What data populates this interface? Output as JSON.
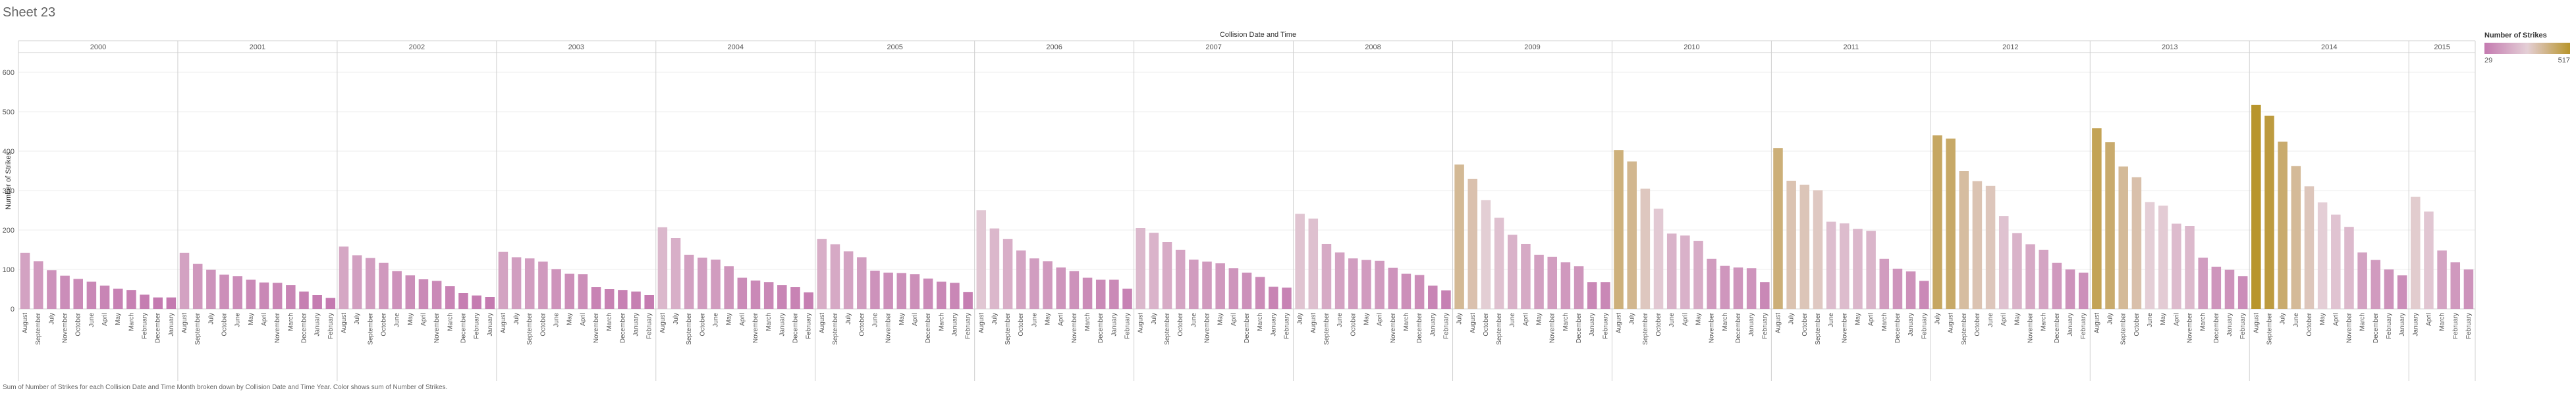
{
  "sheet_title": "Sheet 23",
  "footer_note": "Sum of Number of Strikes for each Collision Date and Time Month broken down by Collision Date and Time Year.  Color shows sum of Number of Strikes.",
  "colors": {
    "low": "#c47ab0",
    "mid": "#e4cfd6",
    "high": "#b8952c",
    "grid": "#ececec",
    "divider": "#d0d0d0",
    "text": "#555555"
  },
  "chart_data": {
    "type": "bar",
    "title": "Collision Date and Time",
    "ylabel": "Number of Strikes",
    "ylim": [
      0,
      650
    ],
    "yticks": [
      0,
      100,
      200,
      300,
      400,
      500,
      600
    ],
    "grid": true,
    "legend": {
      "title": "Number of Strikes",
      "min_label": "29",
      "max_label": "517",
      "placement": "top-right"
    },
    "years": [
      {
        "year": "2000",
        "bars": [
          {
            "month": "August",
            "value": 142
          },
          {
            "month": "September",
            "value": 121
          },
          {
            "month": "July",
            "value": 98
          },
          {
            "month": "November",
            "value": 84
          },
          {
            "month": "October",
            "value": 76
          },
          {
            "month": "June",
            "value": 69
          },
          {
            "month": "April",
            "value": 59
          },
          {
            "month": "May",
            "value": 51
          },
          {
            "month": "March",
            "value": 48
          },
          {
            "month": "February",
            "value": 36
          },
          {
            "month": "December",
            "value": 29
          },
          {
            "month": "January",
            "value": 29
          }
        ]
      },
      {
        "year": "2001",
        "bars": [
          {
            "month": "August",
            "value": 142
          },
          {
            "month": "September",
            "value": 114
          },
          {
            "month": "July",
            "value": 99
          },
          {
            "month": "October",
            "value": 87
          },
          {
            "month": "June",
            "value": 83
          },
          {
            "month": "May",
            "value": 74
          },
          {
            "month": "April",
            "value": 67
          },
          {
            "month": "November",
            "value": 66
          },
          {
            "month": "March",
            "value": 60
          },
          {
            "month": "December",
            "value": 44
          },
          {
            "month": "January",
            "value": 35
          },
          {
            "month": "February",
            "value": 28
          }
        ]
      },
      {
        "year": "2002",
        "bars": [
          {
            "month": "August",
            "value": 158
          },
          {
            "month": "July",
            "value": 136
          },
          {
            "month": "September",
            "value": 129
          },
          {
            "month": "October",
            "value": 117
          },
          {
            "month": "June",
            "value": 96
          },
          {
            "month": "May",
            "value": 85
          },
          {
            "month": "April",
            "value": 75
          },
          {
            "month": "November",
            "value": 71
          },
          {
            "month": "March",
            "value": 58
          },
          {
            "month": "December",
            "value": 40
          },
          {
            "month": "February",
            "value": 34
          },
          {
            "month": "January",
            "value": 30
          }
        ]
      },
      {
        "year": "2003",
        "bars": [
          {
            "month": "August",
            "value": 145
          },
          {
            "month": "July",
            "value": 131
          },
          {
            "month": "September",
            "value": 128
          },
          {
            "month": "October",
            "value": 120
          },
          {
            "month": "June",
            "value": 101
          },
          {
            "month": "May",
            "value": 89
          },
          {
            "month": "April",
            "value": 88
          },
          {
            "month": "November",
            "value": 55
          },
          {
            "month": "March",
            "value": 50
          },
          {
            "month": "December",
            "value": 48
          },
          {
            "month": "January",
            "value": 44
          },
          {
            "month": "February",
            "value": 35
          }
        ]
      },
      {
        "year": "2004",
        "bars": [
          {
            "month": "August",
            "value": 207
          },
          {
            "month": "July",
            "value": 180
          },
          {
            "month": "September",
            "value": 137
          },
          {
            "month": "October",
            "value": 130
          },
          {
            "month": "June",
            "value": 125
          },
          {
            "month": "May",
            "value": 108
          },
          {
            "month": "April",
            "value": 79
          },
          {
            "month": "November",
            "value": 72
          },
          {
            "month": "March",
            "value": 68
          },
          {
            "month": "January",
            "value": 60
          },
          {
            "month": "December",
            "value": 55
          },
          {
            "month": "February",
            "value": 42
          }
        ]
      },
      {
        "year": "2005",
        "bars": [
          {
            "month": "August",
            "value": 177
          },
          {
            "month": "September",
            "value": 164
          },
          {
            "month": "July",
            "value": 146
          },
          {
            "month": "October",
            "value": 131
          },
          {
            "month": "June",
            "value": 97
          },
          {
            "month": "November",
            "value": 92
          },
          {
            "month": "May",
            "value": 91
          },
          {
            "month": "April",
            "value": 88
          },
          {
            "month": "December",
            "value": 77
          },
          {
            "month": "March",
            "value": 69
          },
          {
            "month": "January",
            "value": 66
          },
          {
            "month": "February",
            "value": 43
          }
        ]
      },
      {
        "year": "2006",
        "bars": [
          {
            "month": "August",
            "value": 250
          },
          {
            "month": "July",
            "value": 204
          },
          {
            "month": "September",
            "value": 177
          },
          {
            "month": "October",
            "value": 148
          },
          {
            "month": "June",
            "value": 128
          },
          {
            "month": "May",
            "value": 121
          },
          {
            "month": "April",
            "value": 105
          },
          {
            "month": "November",
            "value": 96
          },
          {
            "month": "March",
            "value": 79
          },
          {
            "month": "December",
            "value": 74
          },
          {
            "month": "January",
            "value": 74
          },
          {
            "month": "February",
            "value": 51
          }
        ]
      },
      {
        "year": "2007",
        "bars": [
          {
            "month": "August",
            "value": 205
          },
          {
            "month": "July",
            "value": 193
          },
          {
            "month": "September",
            "value": 170
          },
          {
            "month": "October",
            "value": 150
          },
          {
            "month": "June",
            "value": 125
          },
          {
            "month": "November",
            "value": 120
          },
          {
            "month": "May",
            "value": 116
          },
          {
            "month": "April",
            "value": 103
          },
          {
            "month": "December",
            "value": 92
          },
          {
            "month": "March",
            "value": 81
          },
          {
            "month": "January",
            "value": 56
          },
          {
            "month": "February",
            "value": 54
          }
        ]
      },
      {
        "year": "2008",
        "bars": [
          {
            "month": "July",
            "value": 241
          },
          {
            "month": "August",
            "value": 229
          },
          {
            "month": "September",
            "value": 165
          },
          {
            "month": "June",
            "value": 143
          },
          {
            "month": "October",
            "value": 128
          },
          {
            "month": "May",
            "value": 124
          },
          {
            "month": "April",
            "value": 122
          },
          {
            "month": "November",
            "value": 104
          },
          {
            "month": "March",
            "value": 89
          },
          {
            "month": "December",
            "value": 86
          },
          {
            "month": "January",
            "value": 59
          },
          {
            "month": "February",
            "value": 47
          }
        ]
      },
      {
        "year": "2009",
        "bars": [
          {
            "month": "July",
            "value": 366
          },
          {
            "month": "August",
            "value": 330
          },
          {
            "month": "October",
            "value": 276
          },
          {
            "month": "September",
            "value": 231
          },
          {
            "month": "June",
            "value": 188
          },
          {
            "month": "April",
            "value": 165
          },
          {
            "month": "May",
            "value": 137
          },
          {
            "month": "November",
            "value": 132
          },
          {
            "month": "March",
            "value": 118
          },
          {
            "month": "December",
            "value": 108
          },
          {
            "month": "January",
            "value": 68
          },
          {
            "month": "February",
            "value": 68
          }
        ]
      },
      {
        "year": "2010",
        "bars": [
          {
            "month": "August",
            "value": 403
          },
          {
            "month": "July",
            "value": 374
          },
          {
            "month": "September",
            "value": 305
          },
          {
            "month": "October",
            "value": 254
          },
          {
            "month": "June",
            "value": 191
          },
          {
            "month": "April",
            "value": 186
          },
          {
            "month": "May",
            "value": 172
          },
          {
            "month": "November",
            "value": 127
          },
          {
            "month": "March",
            "value": 109
          },
          {
            "month": "December",
            "value": 105
          },
          {
            "month": "January",
            "value": 103
          },
          {
            "month": "February",
            "value": 68
          }
        ]
      },
      {
        "year": "2011",
        "bars": [
          {
            "month": "August",
            "value": 408
          },
          {
            "month": "July",
            "value": 325
          },
          {
            "month": "October",
            "value": 315
          },
          {
            "month": "September",
            "value": 301
          },
          {
            "month": "June",
            "value": 221
          },
          {
            "month": "November",
            "value": 217
          },
          {
            "month": "May",
            "value": 203
          },
          {
            "month": "April",
            "value": 198
          },
          {
            "month": "March",
            "value": 127
          },
          {
            "month": "December",
            "value": 102
          },
          {
            "month": "January",
            "value": 95
          },
          {
            "month": "February",
            "value": 71
          }
        ]
      },
      {
        "year": "2012",
        "bars": [
          {
            "month": "July",
            "value": 440
          },
          {
            "month": "August",
            "value": 432
          },
          {
            "month": "September",
            "value": 350
          },
          {
            "month": "October",
            "value": 324
          },
          {
            "month": "June",
            "value": 312
          },
          {
            "month": "April",
            "value": 235
          },
          {
            "month": "May",
            "value": 192
          },
          {
            "month": "November",
            "value": 164
          },
          {
            "month": "March",
            "value": 150
          },
          {
            "month": "December",
            "value": 117
          },
          {
            "month": "January",
            "value": 100
          },
          {
            "month": "February",
            "value": 92
          }
        ]
      },
      {
        "year": "2013",
        "bars": [
          {
            "month": "August",
            "value": 458
          },
          {
            "month": "July",
            "value": 423
          },
          {
            "month": "September",
            "value": 361
          },
          {
            "month": "October",
            "value": 334
          },
          {
            "month": "June",
            "value": 271
          },
          {
            "month": "May",
            "value": 262
          },
          {
            "month": "April",
            "value": 216
          },
          {
            "month": "November",
            "value": 210
          },
          {
            "month": "March",
            "value": 130
          },
          {
            "month": "December",
            "value": 107
          },
          {
            "month": "January",
            "value": 99
          },
          {
            "month": "February",
            "value": 83
          }
        ]
      },
      {
        "year": "2014",
        "bars": [
          {
            "month": "August",
            "value": 517
          },
          {
            "month": "September",
            "value": 490
          },
          {
            "month": "July",
            "value": 424
          },
          {
            "month": "June",
            "value": 362
          },
          {
            "month": "October",
            "value": 311
          },
          {
            "month": "May",
            "value": 270
          },
          {
            "month": "April",
            "value": 239
          },
          {
            "month": "November",
            "value": 208
          },
          {
            "month": "March",
            "value": 143
          },
          {
            "month": "December",
            "value": 124
          },
          {
            "month": "February",
            "value": 100
          },
          {
            "month": "January",
            "value": 85
          }
        ]
      },
      {
        "year": "2015",
        "bars": [
          {
            "month": "January",
            "value": 284
          },
          {
            "month": "April",
            "value": 247
          },
          {
            "month": "March",
            "value": 148
          },
          {
            "month": "February",
            "value": 118
          },
          {
            "month": "February",
            "value": 100
          }
        ]
      }
    ]
  }
}
